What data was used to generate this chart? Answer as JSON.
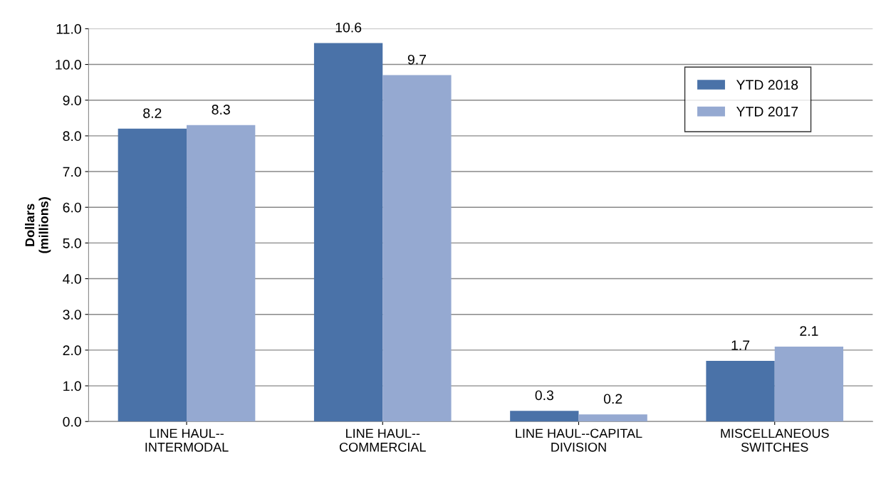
{
  "chart_data": {
    "type": "bar",
    "ylabel": "Dollars\n(millions)",
    "categories": [
      "LINE HAUL--\nINTERMODAL",
      "LINE HAUL--\nCOMMERCIAL",
      "LINE HAUL--CAPITAL\nDIVISION",
      "MISCELLANEOUS\nSWITCHES"
    ],
    "series": [
      {
        "name": "YTD 2018",
        "color": "#4a72a8",
        "values": [
          8.2,
          10.6,
          0.3,
          1.7
        ]
      },
      {
        "name": "YTD 2017",
        "color": "#95a9d1",
        "values": [
          8.3,
          9.7,
          0.2,
          2.1
        ]
      }
    ],
    "ylim": [
      0,
      11
    ],
    "yticks": [
      {
        "value": 0,
        "label": "0.0"
      },
      {
        "value": 1,
        "label": "1.0"
      },
      {
        "value": 2,
        "label": "2.0"
      },
      {
        "value": 3,
        "label": "3.0"
      },
      {
        "value": 4,
        "label": "4.0"
      },
      {
        "value": 5,
        "label": "5.0"
      },
      {
        "value": 6,
        "label": "6.0"
      },
      {
        "value": 7,
        "label": "7.0"
      },
      {
        "value": 8,
        "label": "8.0"
      },
      {
        "value": 9,
        "label": "9.0"
      },
      {
        "value": 10,
        "label": "10.0"
      },
      {
        "value": 11,
        "label": "11.0"
      }
    ],
    "grid": "y",
    "legend": "top right",
    "data_labels": true
  }
}
